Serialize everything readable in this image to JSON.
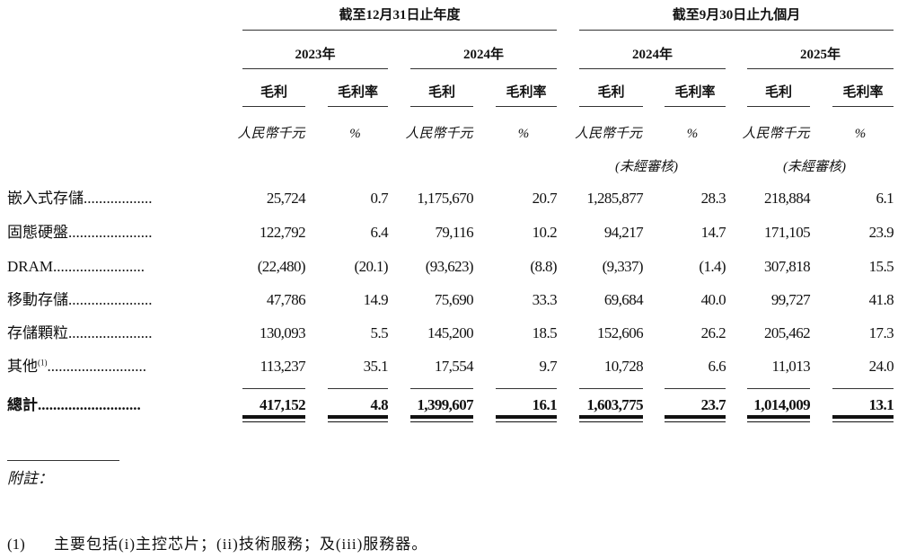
{
  "header": {
    "group_titles": [
      "截至12月31日止年度",
      "截至9月30日止九個月"
    ],
    "years": [
      "2023年",
      "2024年",
      "2024年",
      "2025年"
    ],
    "col_titles": [
      "毛利",
      "毛利率",
      "毛利",
      "毛利率",
      "毛利",
      "毛利率",
      "毛利",
      "毛利率"
    ],
    "units": [
      "人民幣千元",
      "%",
      "人民幣千元",
      "%",
      "人民幣千元",
      "%",
      "人民幣千元",
      "%"
    ],
    "unaudited": [
      "(未經審核)",
      "(未經審核)"
    ]
  },
  "rows": [
    {
      "label": "嵌入式存儲",
      "dots": "..................",
      "values": [
        "25,724",
        "0.7",
        "1,175,670",
        "20.7",
        "1,285,877",
        "28.3",
        "218,884",
        "6.1"
      ]
    },
    {
      "label": "固態硬盤",
      "dots": "......................",
      "values": [
        "122,792",
        "6.4",
        "79,116",
        "10.2",
        "94,217",
        "14.7",
        "171,105",
        "23.9"
      ]
    },
    {
      "label": "DRAM",
      "dots": "........................",
      "values": [
        "(22,480)",
        "(20.1)",
        "(93,623)",
        "(8.8)",
        "(9,337)",
        "(1.4)",
        "307,818",
        "15.5"
      ]
    },
    {
      "label": "移動存儲",
      "dots": "......................",
      "values": [
        "47,786",
        "14.9",
        "75,690",
        "33.3",
        "69,684",
        "40.0",
        "99,727",
        "41.8"
      ]
    },
    {
      "label": "存儲顆粒",
      "dots": "......................",
      "values": [
        "130,093",
        "5.5",
        "145,200",
        "18.5",
        "152,606",
        "26.2",
        "205,462",
        "17.3"
      ]
    },
    {
      "label": "其他",
      "sup": "(1)",
      "dots": "..........................",
      "values": [
        "113,237",
        "35.1",
        "17,554",
        "9.7",
        "10,728",
        "6.6",
        "11,013",
        "24.0"
      ]
    },
    {
      "label": "總計",
      "dots": "...........................",
      "values": [
        "417,152",
        "4.8",
        "1,399,607",
        "16.1",
        "1,603,775",
        "23.7",
        "1,014,009",
        "13.1"
      ],
      "bold": true
    }
  ],
  "notes": {
    "heading": "附註：",
    "items": [
      {
        "marker": "(1)",
        "text": "主要包括(i)主控芯片；(ii)技術服務；及(iii)服務器。"
      }
    ]
  }
}
